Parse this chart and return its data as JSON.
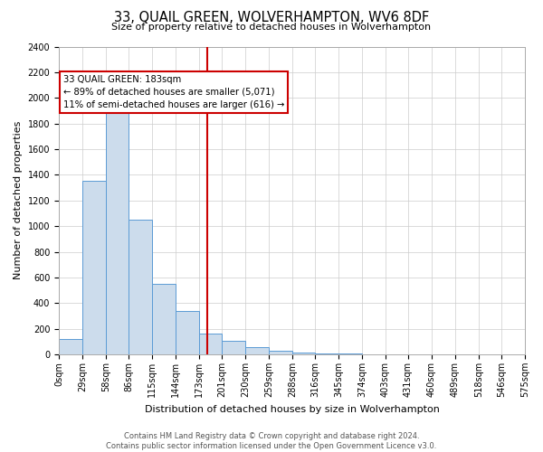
{
  "title": "33, QUAIL GREEN, WOLVERHAMPTON, WV6 8DF",
  "subtitle": "Size of property relative to detached houses in Wolverhampton",
  "xlabel": "Distribution of detached houses by size in Wolverhampton",
  "ylabel": "Number of detached properties",
  "bin_edges": [
    0,
    29,
    58,
    86,
    115,
    144,
    173,
    201,
    230,
    259,
    288,
    316,
    345,
    374,
    403,
    431,
    460,
    489,
    518,
    546,
    575
  ],
  "bin_labels": [
    "0sqm",
    "29sqm",
    "58sqm",
    "86sqm",
    "115sqm",
    "144sqm",
    "173sqm",
    "201sqm",
    "230sqm",
    "259sqm",
    "288sqm",
    "316sqm",
    "345sqm",
    "374sqm",
    "403sqm",
    "431sqm",
    "460sqm",
    "489sqm",
    "518sqm",
    "546sqm",
    "575sqm"
  ],
  "counts": [
    120,
    1350,
    1880,
    1050,
    550,
    340,
    160,
    105,
    60,
    30,
    15,
    8,
    4,
    2,
    1,
    0,
    0,
    0,
    1,
    0
  ],
  "bar_facecolor": "#ccdcec",
  "bar_edgecolor": "#5b9bd5",
  "property_line_x": 183,
  "property_line_color": "#cc0000",
  "annotation_line1": "33 QUAIL GREEN: 183sqm",
  "annotation_line2": "← 89% of detached houses are smaller (5,071)",
  "annotation_line3": "11% of semi-detached houses are larger (616) →",
  "annotation_box_edgecolor": "#cc0000",
  "grid_color": "#cccccc",
  "ylim": [
    0,
    2400
  ],
  "yticks": [
    0,
    200,
    400,
    600,
    800,
    1000,
    1200,
    1400,
    1600,
    1800,
    2000,
    2200,
    2400
  ],
  "footer_text": "Contains HM Land Registry data © Crown copyright and database right 2024.\nContains public sector information licensed under the Open Government Licence v3.0.",
  "background_color": "#ffffff",
  "title_fontsize": 10.5,
  "subtitle_fontsize": 8,
  "ylabel_fontsize": 8,
  "xlabel_fontsize": 8,
  "tick_fontsize": 7,
  "footer_fontsize": 6
}
